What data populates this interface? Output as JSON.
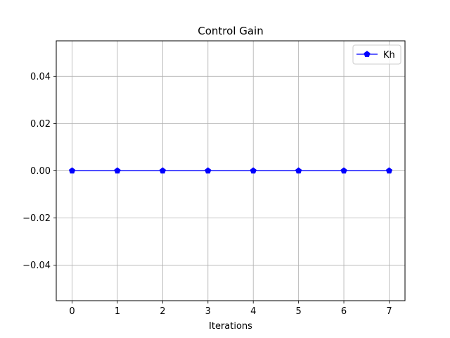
{
  "chart_data": {
    "type": "line",
    "title": "Control Gain",
    "xlabel": "Iterations",
    "ylabel": "",
    "x": [
      0,
      1,
      2,
      3,
      4,
      5,
      6,
      7
    ],
    "xlim": [
      -0.35,
      7.35
    ],
    "ylim": [
      -0.055,
      0.055
    ],
    "xticks": [
      0,
      1,
      2,
      3,
      4,
      5,
      6,
      7
    ],
    "yticks": [
      -0.04,
      -0.02,
      0.0,
      0.02,
      0.04
    ],
    "ytick_labels": [
      "−0.04",
      "−0.02",
      "0.00",
      "0.02",
      "0.04"
    ],
    "grid": true,
    "legend_position": "top-right",
    "series": [
      {
        "name": "Kh",
        "values": [
          0,
          0,
          0,
          0,
          0,
          0,
          0,
          0
        ],
        "color": "#0000ff",
        "marker": "pentagon"
      }
    ]
  }
}
